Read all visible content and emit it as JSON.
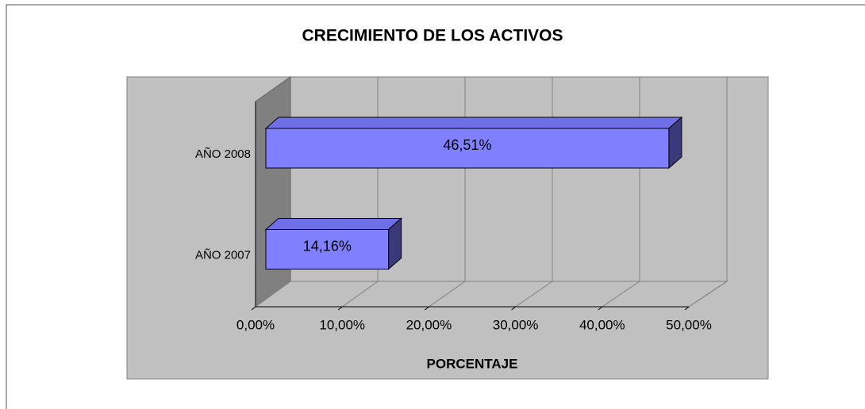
{
  "chart_data": {
    "type": "bar3d_horizontal",
    "title": "CRECIMIENTO DE LOS ACTIVOS",
    "x_label": "PORCENTAJE",
    "categories": [
      "AÑO 2008",
      "AÑO 2007"
    ],
    "values": [
      46.51,
      14.16
    ],
    "value_labels": [
      "46,51%",
      "14,16%"
    ],
    "color": "#8080ff",
    "xlim": [
      0,
      50
    ],
    "xticks": [
      {
        "value": 0,
        "label": "0,00%"
      },
      {
        "value": 10,
        "label": "10,00%"
      },
      {
        "value": 20,
        "label": "20,00%"
      },
      {
        "value": 30,
        "label": "30,00%"
      },
      {
        "value": 40,
        "label": "40,00%"
      },
      {
        "value": 50,
        "label": "50,00%"
      }
    ],
    "grid": true
  }
}
